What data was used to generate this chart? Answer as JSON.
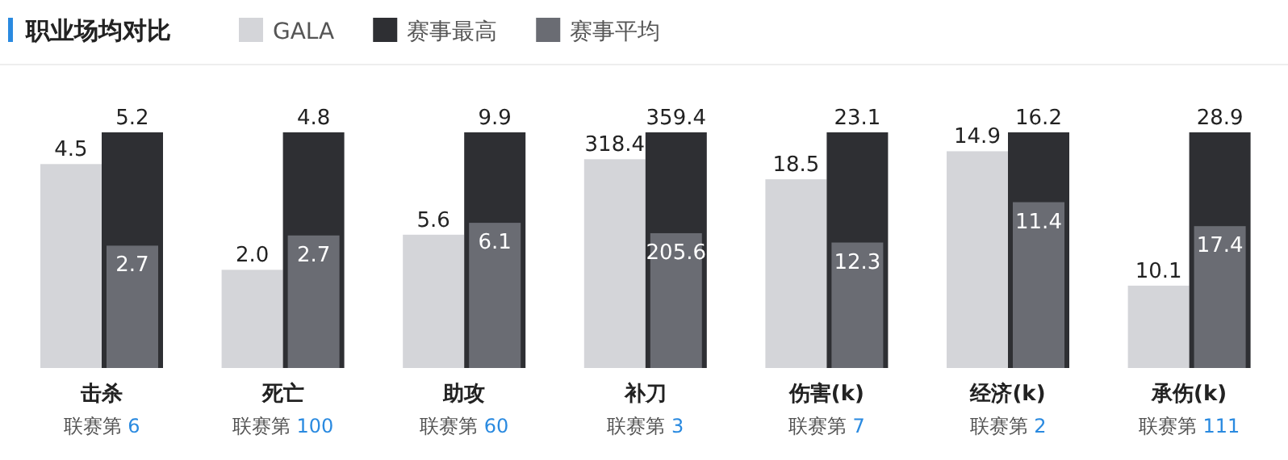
{
  "chart_data": [
    {
      "type": "bar",
      "title": "职业场均对比",
      "legend": "top",
      "categories": [
        "击杀"
      ],
      "annotations": [
        "联赛第 6"
      ],
      "series": [
        {
          "name": "GALA",
          "color": "#d4d5d9",
          "values": [
            4.5
          ],
          "value_labels": [
            "4.5"
          ]
        },
        {
          "name": "赛事最高",
          "color": "#2e2f33",
          "values": [
            5.2
          ],
          "value_labels": [
            "5.2"
          ]
        },
        {
          "name": "赛事平均",
          "color": "#6a6c73",
          "values": [
            2.7
          ],
          "value_labels": [
            "2.7"
          ]
        }
      ]
    },
    {
      "type": "bar",
      "categories": [
        "死亡"
      ],
      "annotations": [
        "联赛第 100"
      ],
      "series": [
        {
          "color": "#d4d5d9",
          "values": [
            2.0
          ],
          "value_labels": [
            "2.0"
          ]
        },
        {
          "color": "#2e2f33",
          "values": [
            4.8
          ],
          "value_labels": [
            "4.8"
          ]
        },
        {
          "color": "#6a6c73",
          "values": [
            2.7
          ],
          "value_labels": [
            "2.7"
          ]
        }
      ]
    },
    {
      "type": "bar",
      "categories": [
        "助攻"
      ],
      "annotations": [
        "联赛第 60"
      ],
      "series": [
        {
          "color": "#d4d5d9",
          "values": [
            5.6
          ],
          "value_labels": [
            "5.6"
          ]
        },
        {
          "color": "#2e2f33",
          "values": [
            9.9
          ],
          "value_labels": [
            "9.9"
          ]
        },
        {
          "color": "#6a6c73",
          "values": [
            6.1
          ],
          "value_labels": [
            "6.1"
          ]
        }
      ]
    },
    {
      "type": "bar",
      "categories": [
        "补刀"
      ],
      "annotations": [
        "联赛第 3"
      ],
      "series": [
        {
          "color": "#d4d5d9",
          "values": [
            318.4
          ],
          "value_labels": [
            "318.4"
          ]
        },
        {
          "color": "#2e2f33",
          "values": [
            359.4
          ],
          "value_labels": [
            "359.4"
          ]
        },
        {
          "color": "#6a6c73",
          "values": [
            205.6
          ],
          "value_labels": [
            "205.6"
          ]
        }
      ]
    },
    {
      "type": "bar",
      "categories": [
        "伤害(k)"
      ],
      "annotations": [
        "联赛第 7"
      ],
      "series": [
        {
          "color": "#d4d5d9",
          "values": [
            18.5
          ],
          "value_labels": [
            "18.5"
          ]
        },
        {
          "color": "#2e2f33",
          "values": [
            23.1
          ],
          "value_labels": [
            "23.1"
          ]
        },
        {
          "color": "#6a6c73",
          "values": [
            12.3
          ],
          "value_labels": [
            "12.3"
          ]
        }
      ]
    },
    {
      "type": "bar",
      "categories": [
        "经济(k)"
      ],
      "annotations": [
        "联赛第 2"
      ],
      "series": [
        {
          "color": "#d4d5d9",
          "values": [
            14.9
          ],
          "value_labels": [
            "14.9"
          ]
        },
        {
          "color": "#2e2f33",
          "values": [
            16.2
          ],
          "value_labels": [
            "16.2"
          ]
        },
        {
          "color": "#6a6c73",
          "values": [
            11.4
          ],
          "value_labels": [
            "11.4"
          ]
        }
      ]
    },
    {
      "type": "bar",
      "categories": [
        "承伤(k)"
      ],
      "annotations": [
        "联赛第 111"
      ],
      "series": [
        {
          "color": "#d4d5d9",
          "values": [
            10.1
          ],
          "value_labels": [
            "10.1"
          ]
        },
        {
          "color": "#2e2f33",
          "values": [
            28.9
          ],
          "value_labels": [
            "28.9"
          ]
        },
        {
          "color": "#6a6c73",
          "values": [
            17.4
          ],
          "value_labels": [
            "17.4"
          ]
        }
      ]
    }
  ]
}
